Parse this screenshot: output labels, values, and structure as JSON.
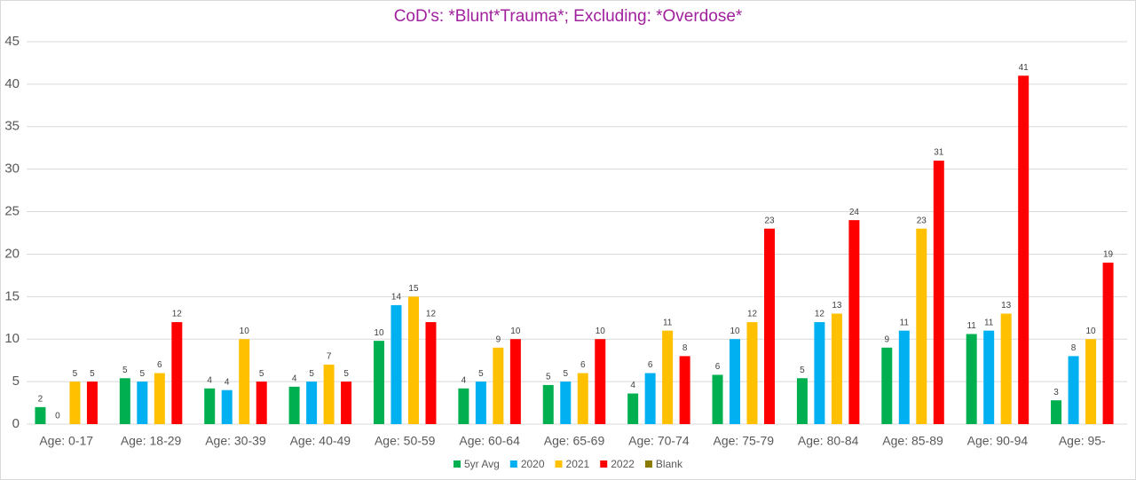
{
  "chart_data": {
    "type": "bar",
    "title": "CoD's: *Blunt*Trauma*;  Excluding: *Overdose*",
    "categories": [
      "Age: 0-17",
      "Age: 18-29",
      "Age: 30-39",
      "Age: 40-49",
      "Age: 50-59",
      "Age: 60-64",
      "Age: 65-69",
      "Age: 70-74",
      "Age: 75-79",
      "Age: 80-84",
      "Age: 85-89",
      "Age: 90-94",
      "Age: 95-"
    ],
    "series": [
      {
        "name": "5yr Avg",
        "color": "#00b050",
        "values": [
          2,
          5.4,
          4.2,
          4.4,
          9.8,
          4.2,
          4.6,
          3.6,
          5.8,
          5.4,
          9,
          10.6,
          2.8
        ],
        "value_labels": [
          "2",
          "5",
          "4",
          "4",
          "10",
          "4",
          "5",
          "4",
          "6",
          "5",
          "9",
          "11",
          "3"
        ]
      },
      {
        "name": "2020",
        "color": "#00b0f0",
        "values": [
          0,
          5,
          4,
          5,
          14,
          5,
          5,
          6,
          10,
          12,
          11,
          11,
          8
        ]
      },
      {
        "name": "2021",
        "color": "#ffc000",
        "values": [
          5,
          6,
          10,
          7,
          15,
          9,
          6,
          11,
          12,
          13,
          23,
          13,
          10
        ]
      },
      {
        "name": "2022",
        "color": "#ff0000",
        "values": [
          5,
          12,
          5,
          5,
          12,
          10,
          10,
          8,
          23,
          24,
          31,
          41,
          19
        ]
      },
      {
        "name": "Blank",
        "color": "#8a7a00",
        "values": [
          null,
          null,
          null,
          null,
          null,
          null,
          null,
          null,
          null,
          null,
          null,
          null,
          null
        ]
      }
    ],
    "ylim": [
      0,
      45
    ],
    "yticks": [
      0,
      5,
      10,
      15,
      20,
      25,
      30,
      35,
      40,
      45
    ],
    "grid": true,
    "legend": "bottom"
  }
}
